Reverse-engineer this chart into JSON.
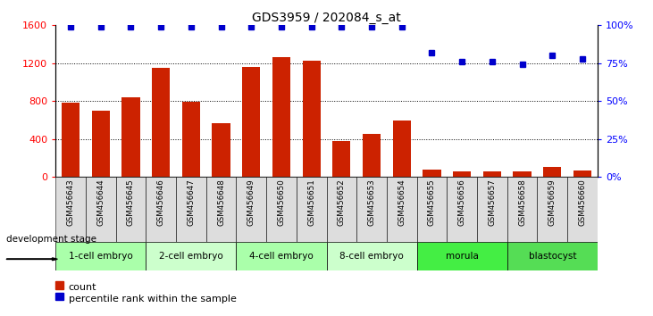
{
  "title": "GDS3959 / 202084_s_at",
  "samples": [
    "GSM456643",
    "GSM456644",
    "GSM456645",
    "GSM456646",
    "GSM456647",
    "GSM456648",
    "GSM456649",
    "GSM456650",
    "GSM456651",
    "GSM456652",
    "GSM456653",
    "GSM456654",
    "GSM456655",
    "GSM456656",
    "GSM456657",
    "GSM456658",
    "GSM456659",
    "GSM456660"
  ],
  "counts": [
    780,
    700,
    840,
    1150,
    790,
    570,
    1160,
    1260,
    1230,
    380,
    450,
    600,
    80,
    55,
    60,
    55,
    110,
    65
  ],
  "percentiles": [
    99,
    99,
    99,
    99,
    99,
    99,
    99,
    99,
    99,
    99,
    99,
    99,
    82,
    76,
    76,
    74,
    80,
    78
  ],
  "stages": [
    {
      "label": "1-cell embryo",
      "start": 0,
      "end": 3,
      "color": "#aaffaa"
    },
    {
      "label": "2-cell embryo",
      "start": 3,
      "end": 6,
      "color": "#ccffcc"
    },
    {
      "label": "4-cell embryo",
      "start": 6,
      "end": 9,
      "color": "#aaffaa"
    },
    {
      "label": "8-cell embryo",
      "start": 9,
      "end": 12,
      "color": "#ccffcc"
    },
    {
      "label": "morula",
      "start": 12,
      "end": 15,
      "color": "#44ee44"
    },
    {
      "label": "blastocyst",
      "start": 15,
      "end": 18,
      "color": "#55dd55"
    }
  ],
  "bar_color": "#cc2200",
  "dot_color": "#0000cc",
  "ylim_left": [
    0,
    1600
  ],
  "ylim_right": [
    0,
    100
  ],
  "yticks_left": [
    0,
    400,
    800,
    1200,
    1600
  ],
  "yticks_right": [
    0,
    25,
    50,
    75,
    100
  ],
  "ytick_labels_right": [
    "0%",
    "25%",
    "50%",
    "75%",
    "100%"
  ],
  "xlabel_dev": "development stage",
  "legend_count_label": "count",
  "legend_pct_label": "percentile rank within the sample",
  "background_color": "#ffffff",
  "sample_col_color": "#dddddd"
}
